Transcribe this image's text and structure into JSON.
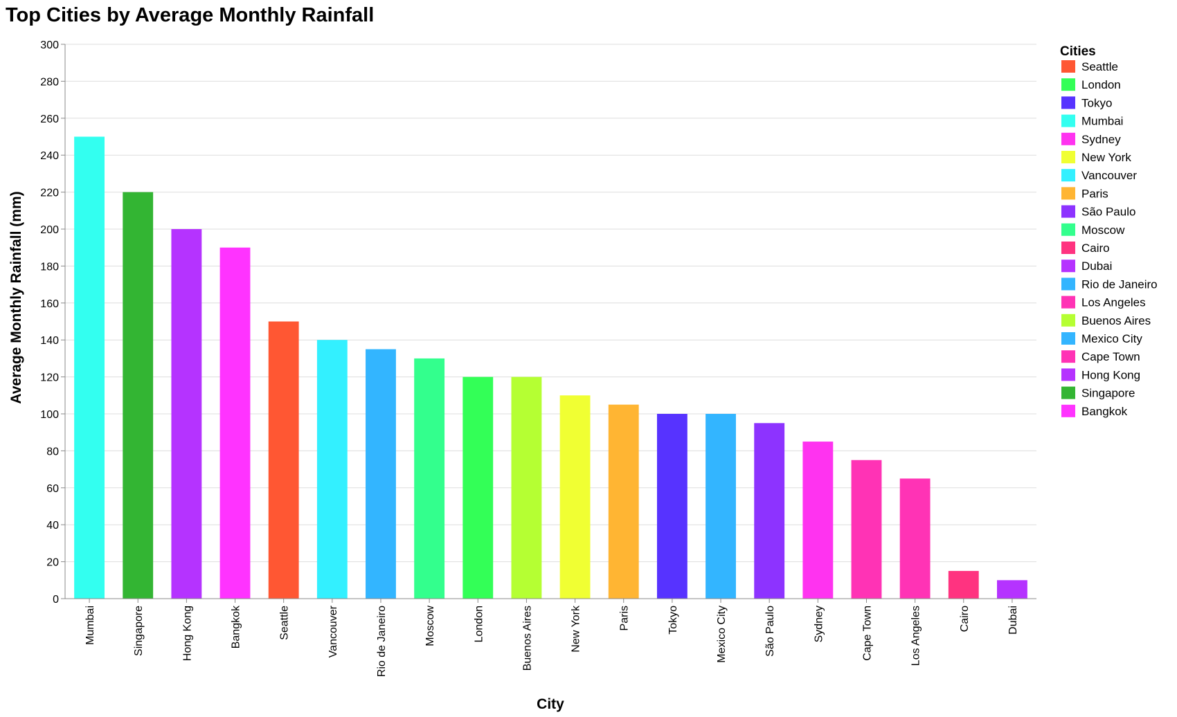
{
  "chart_data": {
    "type": "bar",
    "title": "Top Cities by Average Monthly Rainfall",
    "xlabel": "City",
    "ylabel": "Average Monthly Rainfall (mm)",
    "ylim": [
      0,
      300
    ],
    "yticks": [
      0,
      20,
      40,
      60,
      80,
      100,
      120,
      140,
      160,
      180,
      200,
      220,
      240,
      260,
      280,
      300
    ],
    "grid": true,
    "legend_title": "Cities",
    "legend_position": "right",
    "categories": [
      "Mumbai",
      "Singapore",
      "Hong Kong",
      "Bangkok",
      "Seattle",
      "Vancouver",
      "Rio de Janeiro",
      "Moscow",
      "London",
      "Buenos Aires",
      "New York",
      "Paris",
      "Tokyo",
      "Mexico City",
      "São Paulo",
      "Sydney",
      "Cape Town",
      "Los Angeles",
      "Cairo",
      "Dubai"
    ],
    "values": [
      250,
      220,
      200,
      190,
      150,
      140,
      135,
      130,
      120,
      120,
      110,
      105,
      100,
      100,
      95,
      85,
      75,
      65,
      15,
      10
    ],
    "legend": [
      {
        "name": "Seattle",
        "color": "#ff5733"
      },
      {
        "name": "London",
        "color": "#33ff57"
      },
      {
        "name": "Tokyo",
        "color": "#5733ff"
      },
      {
        "name": "Mumbai",
        "color": "#33fff0"
      },
      {
        "name": "Sydney",
        "color": "#ff33f0"
      },
      {
        "name": "New York",
        "color": "#f0ff33"
      },
      {
        "name": "Vancouver",
        "color": "#33f0ff"
      },
      {
        "name": "Paris",
        "color": "#ffb533"
      },
      {
        "name": "São Paulo",
        "color": "#8d33ff"
      },
      {
        "name": "Moscow",
        "color": "#33ff8d"
      },
      {
        "name": "Cairo",
        "color": "#ff3380"
      },
      {
        "name": "Dubai",
        "color": "#b533ff"
      },
      {
        "name": "Rio de Janeiro",
        "color": "#33b5ff"
      },
      {
        "name": "Los Angeles",
        "color": "#ff33b5"
      },
      {
        "name": "Buenos Aires",
        "color": "#b5ff33"
      },
      {
        "name": "Mexico City",
        "color": "#33b5ff"
      },
      {
        "name": "Cape Town",
        "color": "#ff33b5"
      },
      {
        "name": "Hong Kong",
        "color": "#b533ff"
      },
      {
        "name": "Singapore",
        "color": "#33b533"
      },
      {
        "name": "Bangkok",
        "color": "#ff33ff"
      }
    ]
  }
}
